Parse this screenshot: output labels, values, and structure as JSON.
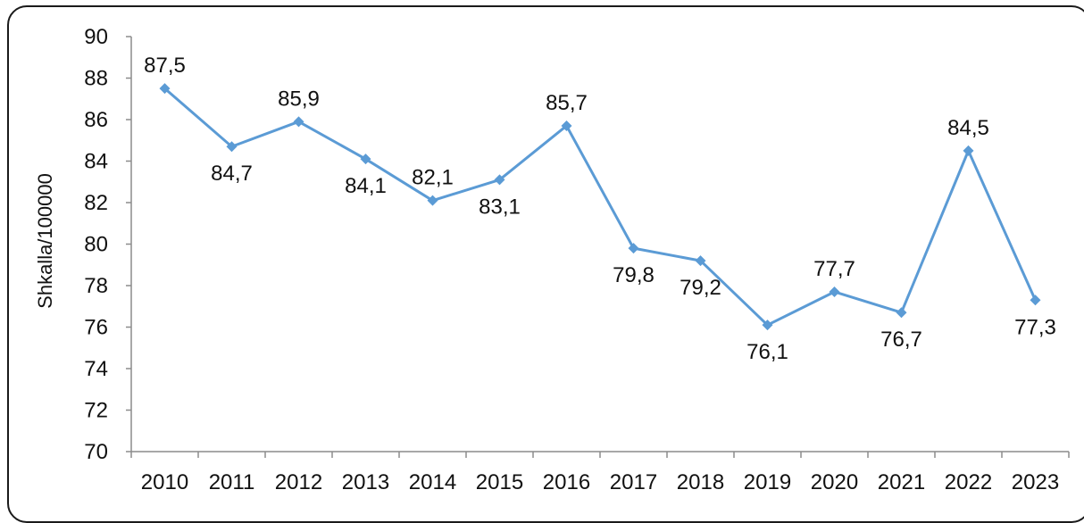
{
  "chart_data": {
    "type": "line",
    "title": "",
    "xlabel": "",
    "ylabel": "Shkalla/100000",
    "ylim": [
      70,
      90
    ],
    "ytick_step": 2,
    "grid": false,
    "legend": "none",
    "categories": [
      "2010",
      "2011",
      "2012",
      "2013",
      "2014",
      "2015",
      "2016",
      "2017",
      "2018",
      "2019",
      "2020",
      "2021",
      "2022",
      "2023"
    ],
    "series": [
      {
        "values": [
          87.5,
          84.7,
          85.9,
          84.1,
          82.1,
          83.1,
          85.7,
          79.8,
          79.2,
          76.1,
          77.7,
          76.7,
          84.5,
          77.3
        ],
        "labels": [
          "87,5",
          "84,7",
          "85,9",
          "84,1",
          "82,1",
          "83,1",
          "85,7",
          "79,8",
          "79,2",
          "76,1",
          "77,7",
          "76,7",
          "84,5",
          "77,3"
        ],
        "label_positions": [
          "above",
          "below",
          "above",
          "below",
          "above",
          "below",
          "above",
          "below",
          "below",
          "below",
          "above",
          "below",
          "above",
          "below"
        ],
        "color": "#5b9bd5",
        "marker": "diamond"
      }
    ]
  }
}
